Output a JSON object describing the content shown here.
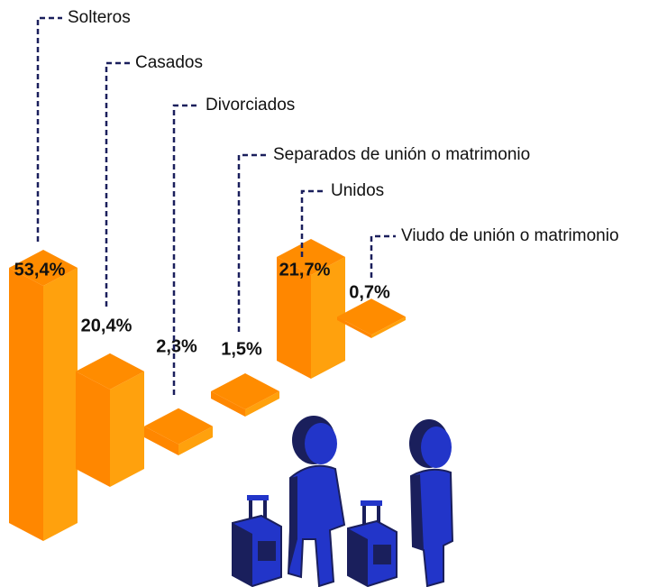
{
  "chart_data": {
    "type": "bar",
    "categories": [
      "Solteros",
      "Casados",
      "Divorciados",
      "Separados de unión o matrimonio",
      "Unidos",
      "Viudo de unión o matrimonio"
    ],
    "values": [
      53.4,
      20.4,
      2.3,
      1.5,
      21.7,
      0.7
    ],
    "value_labels": [
      "53,4%",
      "20,4%",
      "2,3%",
      "1,5%",
      "21,7%",
      "0,7%"
    ],
    "color": "#ff8c00"
  }
}
